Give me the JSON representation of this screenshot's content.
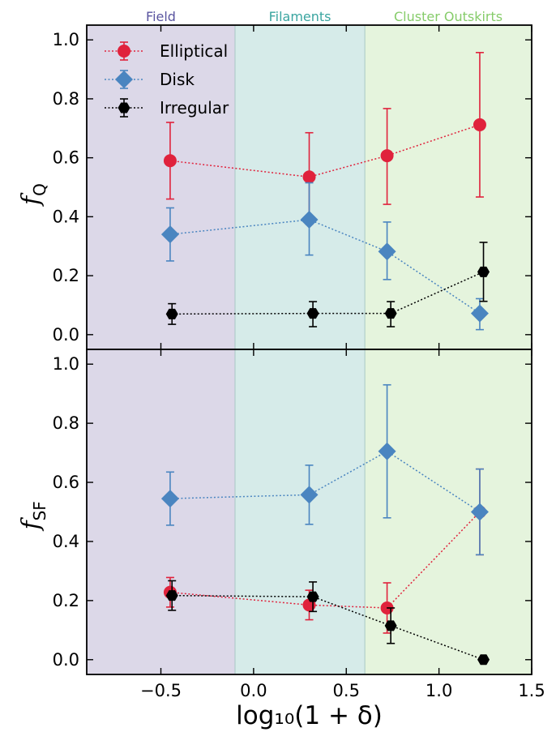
{
  "regions": [
    {
      "label": "Field",
      "x_from": -0.9,
      "x_to": -0.1,
      "fill": "#dcd8e8",
      "text_color": "#5a55a0"
    },
    {
      "label": "Filaments",
      "x_from": -0.1,
      "x_to": 0.6,
      "fill": "#d6ebe9",
      "text_color": "#3aa5a0"
    },
    {
      "label": "Cluster Outskirts",
      "x_from": 0.6,
      "x_to": 1.5,
      "fill": "#e5f4dd",
      "text_color": "#86cc6a"
    }
  ],
  "legend": {
    "position": "upper-left",
    "entries": [
      {
        "label": "Elliptical",
        "color": "#e0223c",
        "marker": "circle"
      },
      {
        "label": "Disk",
        "color": "#4a85c0",
        "marker": "diamond"
      },
      {
        "label": "Irregular",
        "color": "#000000",
        "marker": "hexagon"
      }
    ]
  },
  "chart_data": [
    {
      "type": "scatter",
      "ylabel": "f_Q",
      "xlim": [
        -0.9,
        1.5
      ],
      "ylim": [
        -0.05,
        1.05
      ],
      "yticks": [
        "0.0",
        "0.2",
        "0.4",
        "0.6",
        "0.8",
        "1.0"
      ],
      "series": [
        {
          "name": "Elliptical",
          "color": "#e0223c",
          "marker": "circle",
          "x": [
            -0.45,
            0.3,
            0.72,
            1.22
          ],
          "y": [
            0.59,
            0.535,
            0.607,
            0.712
          ],
          "err_low": [
            0.13,
            0.16,
            0.165,
            0.245
          ],
          "err_high": [
            0.13,
            0.15,
            0.16,
            0.245
          ]
        },
        {
          "name": "Disk",
          "color": "#4a85c0",
          "marker": "diamond",
          "x": [
            -0.45,
            0.3,
            0.72,
            1.22
          ],
          "y": [
            0.34,
            0.39,
            0.282,
            0.072
          ],
          "err_low": [
            0.09,
            0.12,
            0.095,
            0.055
          ],
          "err_high": [
            0.09,
            0.125,
            0.1,
            0.05
          ]
        },
        {
          "name": "Irregular",
          "color": "#000000",
          "marker": "hexagon",
          "x": [
            -0.44,
            0.32,
            0.74,
            1.24
          ],
          "y": [
            0.07,
            0.072,
            0.072,
            0.213
          ],
          "err_low": [
            0.035,
            0.045,
            0.045,
            0.1
          ],
          "err_high": [
            0.035,
            0.04,
            0.04,
            0.1
          ]
        }
      ]
    },
    {
      "type": "scatter",
      "xlabel": "log₁₀(1 + δ)",
      "ylabel": "f_SF",
      "xlim": [
        -0.9,
        1.5
      ],
      "ylim": [
        -0.05,
        1.05
      ],
      "xticks": [
        "−0.5",
        "0.0",
        "0.5",
        "1.0",
        "1.5"
      ],
      "yticks": [
        "0.0",
        "0.2",
        "0.4",
        "0.6",
        "0.8",
        "1.0"
      ],
      "series": [
        {
          "name": "Elliptical",
          "color": "#e0223c",
          "marker": "circle",
          "x": [
            -0.45,
            0.3,
            0.72,
            1.22
          ],
          "y": [
            0.228,
            0.185,
            0.175,
            0.5
          ],
          "err_low": [
            0.05,
            0.05,
            0.085,
            0.145
          ],
          "err_high": [
            0.05,
            0.05,
            0.085,
            0.145
          ]
        },
        {
          "name": "Disk",
          "color": "#4a85c0",
          "marker": "diamond",
          "x": [
            -0.45,
            0.3,
            0.72,
            1.22
          ],
          "y": [
            0.545,
            0.558,
            0.705,
            0.5
          ],
          "err_low": [
            0.09,
            0.1,
            0.225,
            0.145
          ],
          "err_high": [
            0.09,
            0.1,
            0.225,
            0.145
          ]
        },
        {
          "name": "Irregular",
          "color": "#000000",
          "marker": "hexagon",
          "x": [
            -0.44,
            0.32,
            0.74,
            1.24
          ],
          "y": [
            0.217,
            0.213,
            0.115,
            0.0
          ],
          "err_low": [
            0.05,
            0.05,
            0.06,
            0.0
          ],
          "err_high": [
            0.05,
            0.05,
            0.06,
            0.0
          ]
        }
      ]
    }
  ]
}
